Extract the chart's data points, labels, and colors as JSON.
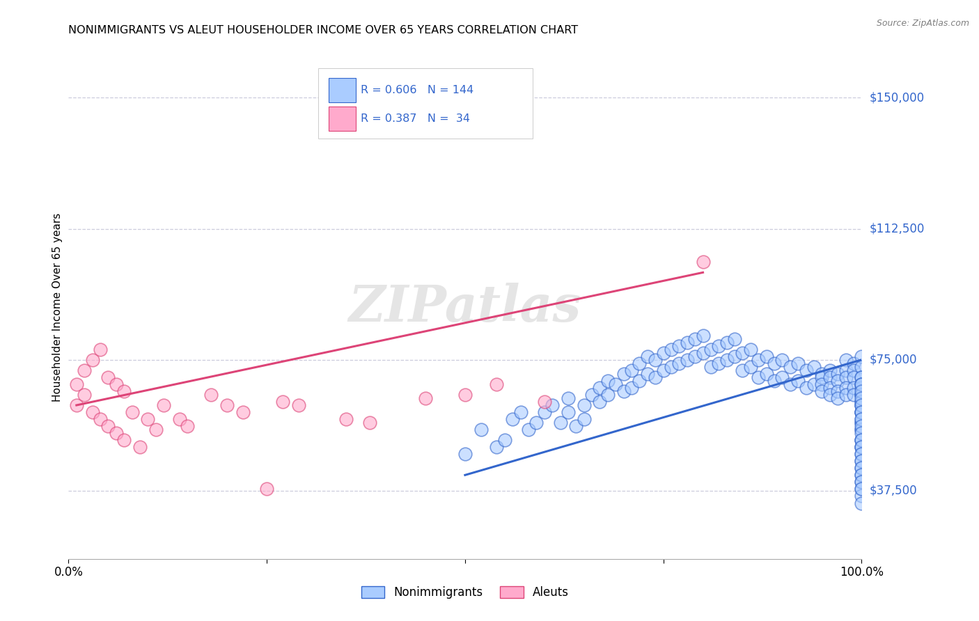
{
  "title": "NONIMMIGRANTS VS ALEUT HOUSEHOLDER INCOME OVER 65 YEARS CORRELATION CHART",
  "source": "Source: ZipAtlas.com",
  "ylabel": "Householder Income Over 65 years",
  "y_tick_labels": [
    "$37,500",
    "$75,000",
    "$112,500",
    "$150,000"
  ],
  "y_tick_values": [
    37500,
    75000,
    112500,
    150000
  ],
  "color_nonimm": "#aaccff",
  "color_aleut": "#ffaacc",
  "color_nonimm_line": "#3366cc",
  "color_aleut_line": "#dd4477",
  "color_label": "#3366cc",
  "watermark": "ZIPatlas",
  "nonimm_x": [
    0.5,
    0.52,
    0.54,
    0.55,
    0.56,
    0.57,
    0.58,
    0.59,
    0.6,
    0.61,
    0.62,
    0.63,
    0.63,
    0.64,
    0.65,
    0.65,
    0.66,
    0.67,
    0.67,
    0.68,
    0.68,
    0.69,
    0.7,
    0.7,
    0.71,
    0.71,
    0.72,
    0.72,
    0.73,
    0.73,
    0.74,
    0.74,
    0.75,
    0.75,
    0.76,
    0.76,
    0.77,
    0.77,
    0.78,
    0.78,
    0.79,
    0.79,
    0.8,
    0.8,
    0.81,
    0.81,
    0.82,
    0.82,
    0.83,
    0.83,
    0.84,
    0.84,
    0.85,
    0.85,
    0.86,
    0.86,
    0.87,
    0.87,
    0.88,
    0.88,
    0.89,
    0.89,
    0.9,
    0.9,
    0.91,
    0.91,
    0.92,
    0.92,
    0.93,
    0.93,
    0.94,
    0.94,
    0.95,
    0.95,
    0.95,
    0.95,
    0.96,
    0.96,
    0.96,
    0.96,
    0.97,
    0.97,
    0.97,
    0.97,
    0.98,
    0.98,
    0.98,
    0.98,
    0.98,
    0.99,
    0.99,
    0.99,
    0.99,
    0.99,
    1.0,
    1.0,
    1.0,
    1.0,
    1.0,
    1.0,
    1.0,
    1.0,
    1.0,
    1.0,
    1.0,
    1.0,
    1.0,
    1.0,
    1.0,
    1.0,
    1.0,
    1.0,
    1.0,
    1.0,
    1.0,
    1.0,
    1.0,
    1.0,
    1.0,
    1.0,
    1.0,
    1.0,
    1.0,
    1.0,
    1.0,
    1.0,
    1.0,
    1.0,
    1.0,
    1.0,
    1.0,
    1.0,
    1.0,
    1.0,
    1.0,
    1.0,
    1.0,
    1.0,
    1.0,
    1.0,
    1.0,
    1.0,
    1.0,
    1.0
  ],
  "nonimm_y": [
    48000,
    55000,
    50000,
    52000,
    58000,
    60000,
    55000,
    57000,
    60000,
    62000,
    57000,
    64000,
    60000,
    56000,
    62000,
    58000,
    65000,
    67000,
    63000,
    69000,
    65000,
    68000,
    71000,
    66000,
    72000,
    67000,
    74000,
    69000,
    76000,
    71000,
    75000,
    70000,
    77000,
    72000,
    78000,
    73000,
    79000,
    74000,
    80000,
    75000,
    81000,
    76000,
    82000,
    77000,
    78000,
    73000,
    79000,
    74000,
    80000,
    75000,
    81000,
    76000,
    77000,
    72000,
    78000,
    73000,
    75000,
    70000,
    76000,
    71000,
    74000,
    69000,
    75000,
    70000,
    73000,
    68000,
    74000,
    69000,
    72000,
    67000,
    73000,
    68000,
    71000,
    70000,
    68000,
    66000,
    72000,
    70000,
    67000,
    65000,
    71000,
    69000,
    66000,
    64000,
    75000,
    72000,
    70000,
    67000,
    65000,
    74000,
    72000,
    70000,
    67000,
    65000,
    76000,
    73000,
    70000,
    68000,
    65000,
    62000,
    70000,
    67000,
    65000,
    62000,
    60000,
    68000,
    65000,
    63000,
    60000,
    57000,
    63000,
    60000,
    57000,
    55000,
    58000,
    55000,
    52000,
    50000,
    52000,
    50000,
    48000,
    46000,
    44000,
    42000,
    40000,
    38000,
    36000,
    34000,
    68000,
    66000,
    64000,
    62000,
    60000,
    58000,
    56000,
    54000,
    52000,
    50000,
    48000,
    46000,
    44000,
    42000,
    40000,
    38000
  ],
  "aleut_x": [
    0.01,
    0.01,
    0.02,
    0.02,
    0.03,
    0.03,
    0.04,
    0.04,
    0.05,
    0.05,
    0.06,
    0.06,
    0.07,
    0.07,
    0.08,
    0.09,
    0.1,
    0.11,
    0.12,
    0.14,
    0.15,
    0.18,
    0.2,
    0.22,
    0.25,
    0.27,
    0.29,
    0.35,
    0.38,
    0.45,
    0.5,
    0.54,
    0.6,
    0.8
  ],
  "aleut_y": [
    68000,
    62000,
    72000,
    65000,
    75000,
    60000,
    78000,
    58000,
    70000,
    56000,
    68000,
    54000,
    66000,
    52000,
    60000,
    50000,
    58000,
    55000,
    62000,
    58000,
    56000,
    65000,
    62000,
    60000,
    38000,
    63000,
    62000,
    58000,
    57000,
    64000,
    65000,
    68000,
    63000,
    103000
  ],
  "nonimm_line_x": [
    0.5,
    1.0
  ],
  "nonimm_line_y": [
    42000,
    75000
  ],
  "aleut_line_x": [
    0.01,
    0.8
  ],
  "aleut_line_y": [
    62000,
    100000
  ],
  "xlim": [
    0.0,
    1.0
  ],
  "ylim": [
    18000,
    162000
  ]
}
